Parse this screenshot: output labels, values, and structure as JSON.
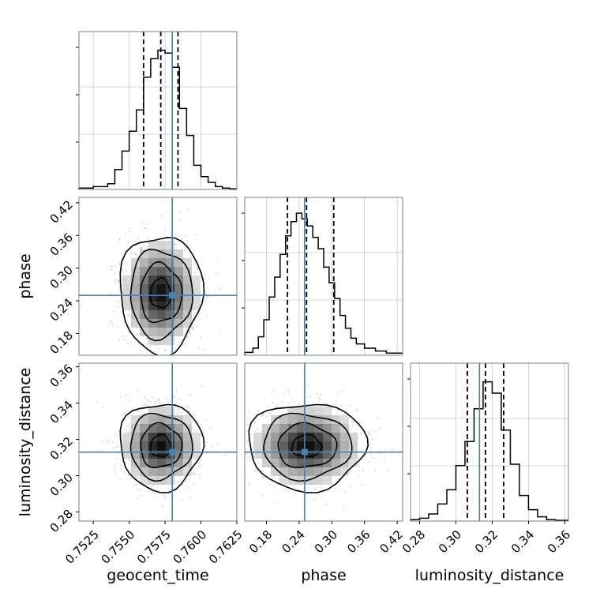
{
  "chart_data": {
    "type": "corner",
    "parameters": [
      "geocent_time",
      "phase",
      "luminosity_distance"
    ],
    "truths": {
      "geocent_time": 0.758,
      "phase": 0.25,
      "luminosity_distance": 0.313,
      "color": "#4682b4"
    },
    "ranges": {
      "geocent_time": [
        0.7515,
        0.7625
      ],
      "phase": [
        0.14,
        0.43
      ],
      "luminosity_distance": [
        0.275,
        0.362
      ]
    },
    "ticks": {
      "geocent_time": [
        {
          "v": 0.7525,
          "label": "0.7525"
        },
        {
          "v": 0.755,
          "label": "0.7550"
        },
        {
          "v": 0.7575,
          "label": "0.7575"
        },
        {
          "v": 0.76,
          "label": "0.7600"
        },
        {
          "v": 0.7625,
          "label": "0.7625"
        }
      ],
      "phase": [
        {
          "v": 0.18,
          "label": "0.18"
        },
        {
          "v": 0.24,
          "label": "0.24"
        },
        {
          "v": 0.3,
          "label": "0.30"
        },
        {
          "v": 0.36,
          "label": "0.36"
        },
        {
          "v": 0.42,
          "label": "0.42"
        }
      ],
      "luminosity_distance": [
        {
          "v": 0.28,
          "label": "0.28"
        },
        {
          "v": 0.3,
          "label": "0.30"
        },
        {
          "v": 0.32,
          "label": "0.32"
        },
        {
          "v": 0.34,
          "label": "0.34"
        },
        {
          "v": 0.36,
          "label": "0.36"
        }
      ]
    },
    "marginals": [
      {
        "parameter": "geocent_time",
        "quantiles": [
          0.756,
          0.7572,
          0.7584
        ],
        "bins": [
          {
            "x0": 0.7515,
            "x1": 0.7525,
            "count": 0.01
          },
          {
            "x0": 0.7525,
            "x1": 0.7535,
            "count": 0.02
          },
          {
            "x0": 0.7535,
            "x1": 0.754,
            "count": 0.04
          },
          {
            "x0": 0.754,
            "x1": 0.7545,
            "count": 0.14
          },
          {
            "x0": 0.7545,
            "x1": 0.755,
            "count": 0.27
          },
          {
            "x0": 0.755,
            "x1": 0.7555,
            "count": 0.41
          },
          {
            "x0": 0.7555,
            "x1": 0.756,
            "count": 0.56
          },
          {
            "x0": 0.756,
            "x1": 0.7565,
            "count": 0.79
          },
          {
            "x0": 0.7565,
            "x1": 0.757,
            "count": 0.92
          },
          {
            "x0": 0.757,
            "x1": 0.7575,
            "count": 0.98
          },
          {
            "x0": 0.7575,
            "x1": 0.758,
            "count": 0.96
          },
          {
            "x0": 0.758,
            "x1": 0.7585,
            "count": 0.86
          },
          {
            "x0": 0.7585,
            "x1": 0.759,
            "count": 0.57
          },
          {
            "x0": 0.759,
            "x1": 0.7595,
            "count": 0.38
          },
          {
            "x0": 0.7595,
            "x1": 0.76,
            "count": 0.17
          },
          {
            "x0": 0.76,
            "x1": 0.7605,
            "count": 0.09
          },
          {
            "x0": 0.7605,
            "x1": 0.761,
            "count": 0.05
          },
          {
            "x0": 0.761,
            "x1": 0.7615,
            "count": 0.02
          },
          {
            "x0": 0.7615,
            "x1": 0.762,
            "count": 0.01
          },
          {
            "x0": 0.762,
            "x1": 0.7625,
            "count": 0.005
          }
        ]
      },
      {
        "parameter": "phase",
        "quantiles": [
          0.2185,
          0.2535,
          0.3035
        ],
        "bins": [
          {
            "x0": 0.14,
            "x1": 0.155,
            "count": 0.02
          },
          {
            "x0": 0.155,
            "x1": 0.165,
            "count": 0.05
          },
          {
            "x0": 0.165,
            "x1": 0.175,
            "count": 0.13
          },
          {
            "x0": 0.175,
            "x1": 0.185,
            "count": 0.25
          },
          {
            "x0": 0.185,
            "x1": 0.195,
            "count": 0.41
          },
          {
            "x0": 0.195,
            "x1": 0.205,
            "count": 0.55
          },
          {
            "x0": 0.205,
            "x1": 0.215,
            "count": 0.71
          },
          {
            "x0": 0.215,
            "x1": 0.225,
            "count": 0.84
          },
          {
            "x0": 0.225,
            "x1": 0.235,
            "count": 0.94
          },
          {
            "x0": 0.235,
            "x1": 0.245,
            "count": 1.0
          },
          {
            "x0": 0.245,
            "x1": 0.255,
            "count": 0.96
          },
          {
            "x0": 0.255,
            "x1": 0.265,
            "count": 0.91
          },
          {
            "x0": 0.265,
            "x1": 0.275,
            "count": 0.83
          },
          {
            "x0": 0.275,
            "x1": 0.285,
            "count": 0.75
          },
          {
            "x0": 0.285,
            "x1": 0.295,
            "count": 0.62
          },
          {
            "x0": 0.295,
            "x1": 0.305,
            "count": 0.51
          },
          {
            "x0": 0.305,
            "x1": 0.315,
            "count": 0.4
          },
          {
            "x0": 0.315,
            "x1": 0.325,
            "count": 0.28
          },
          {
            "x0": 0.325,
            "x1": 0.335,
            "count": 0.19
          },
          {
            "x0": 0.335,
            "x1": 0.345,
            "count": 0.12
          },
          {
            "x0": 0.345,
            "x1": 0.36,
            "count": 0.08
          },
          {
            "x0": 0.36,
            "x1": 0.38,
            "count": 0.05
          },
          {
            "x0": 0.38,
            "x1": 0.4,
            "count": 0.03
          },
          {
            "x0": 0.4,
            "x1": 0.43,
            "count": 0.015
          }
        ]
      },
      {
        "parameter": "luminosity_distance",
        "quantiles": [
          0.3063,
          0.3163,
          0.3263
        ],
        "bins": [
          {
            "x0": 0.275,
            "x1": 0.28,
            "count": 0.01
          },
          {
            "x0": 0.28,
            "x1": 0.285,
            "count": 0.02
          },
          {
            "x0": 0.285,
            "x1": 0.29,
            "count": 0.05
          },
          {
            "x0": 0.29,
            "x1": 0.295,
            "count": 0.12
          },
          {
            "x0": 0.295,
            "x1": 0.3,
            "count": 0.22
          },
          {
            "x0": 0.3,
            "x1": 0.305,
            "count": 0.39
          },
          {
            "x0": 0.305,
            "x1": 0.31,
            "count": 0.56
          },
          {
            "x0": 0.31,
            "x1": 0.315,
            "count": 0.79
          },
          {
            "x0": 0.315,
            "x1": 0.32,
            "count": 0.98
          },
          {
            "x0": 0.32,
            "x1": 0.325,
            "count": 0.9
          },
          {
            "x0": 0.325,
            "x1": 0.33,
            "count": 0.64
          },
          {
            "x0": 0.33,
            "x1": 0.335,
            "count": 0.4
          },
          {
            "x0": 0.335,
            "x1": 0.34,
            "count": 0.18
          },
          {
            "x0": 0.34,
            "x1": 0.345,
            "count": 0.08
          },
          {
            "x0": 0.345,
            "x1": 0.35,
            "count": 0.03
          },
          {
            "x0": 0.35,
            "x1": 0.355,
            "count": 0.01
          },
          {
            "x0": 0.355,
            "x1": 0.362,
            "count": 0.005
          }
        ]
      }
    ],
    "joint_panels": [
      {
        "x": "geocent_time",
        "y": "phase",
        "center": [
          0.7572,
          0.2535
        ],
        "sigma": [
          0.0012,
          0.045
        ],
        "contour_levels_sigma": [
          0.5,
          1.0,
          1.5,
          2.0
        ]
      },
      {
        "x": "geocent_time",
        "y": "luminosity_distance",
        "center": [
          0.7572,
          0.3163
        ],
        "sigma": [
          0.0012,
          0.01
        ],
        "contour_levels_sigma": [
          0.5,
          1.0,
          1.5,
          2.0
        ]
      },
      {
        "x": "phase",
        "y": "luminosity_distance",
        "center": [
          0.2535,
          0.3163
        ],
        "sigma": [
          0.045,
          0.01
        ],
        "contour_levels_sigma": [
          0.5,
          1.0,
          1.5,
          2.0
        ]
      }
    ],
    "grid": true
  }
}
